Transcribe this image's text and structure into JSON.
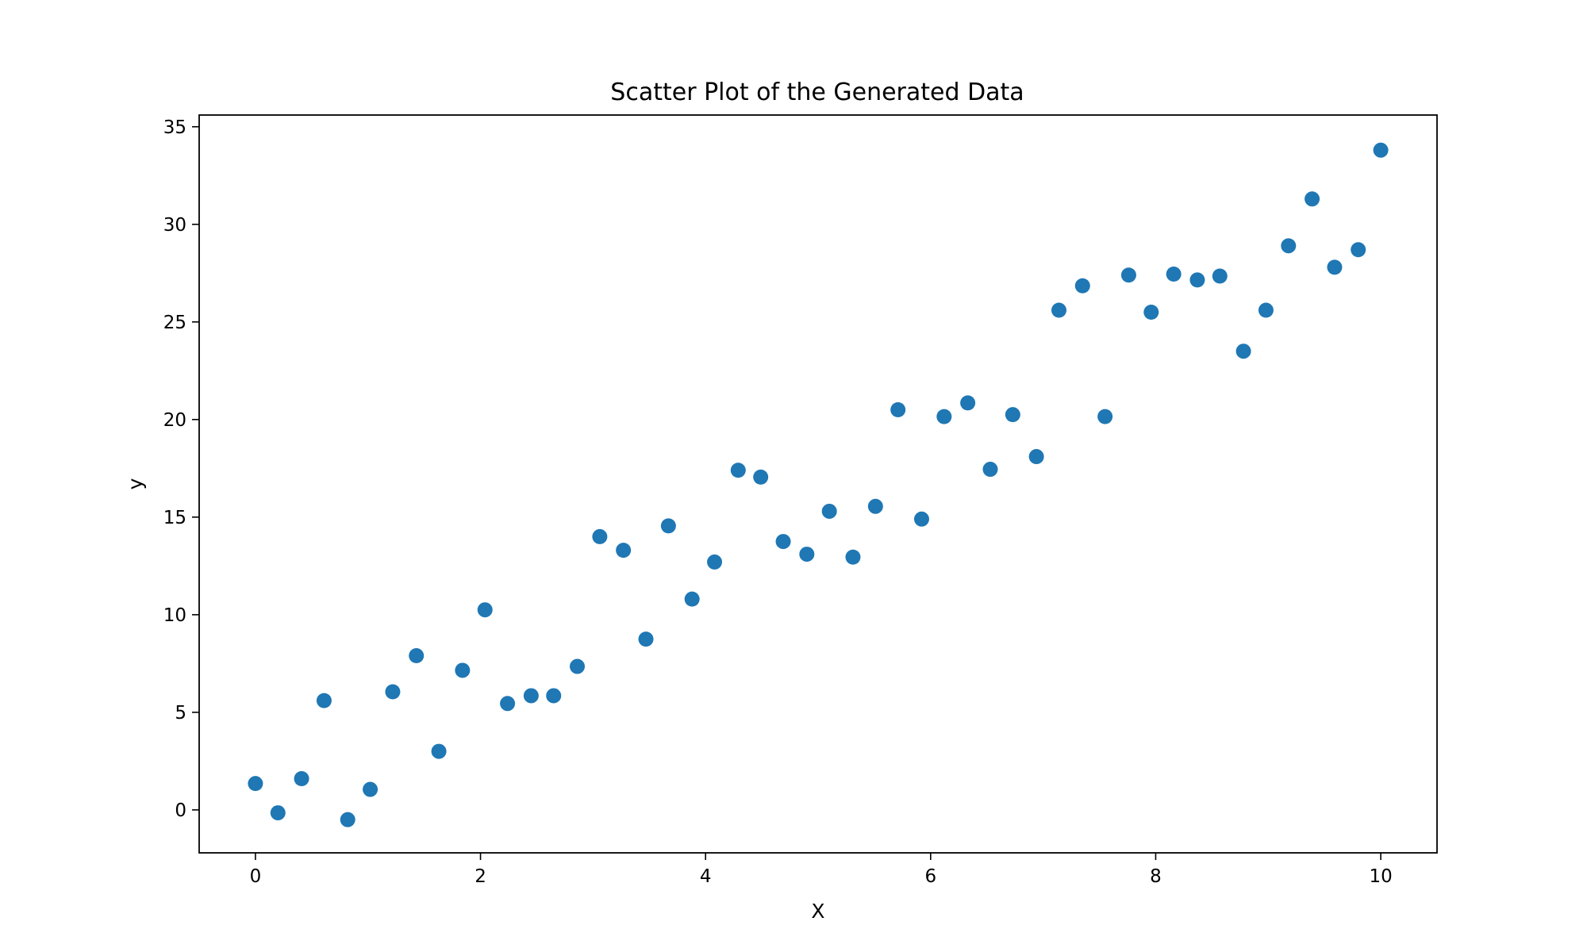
{
  "chart_data": {
    "type": "scatter",
    "title": "Scatter Plot of the Generated Data",
    "xlabel": "X",
    "ylabel": "y",
    "xlim": [
      -0.5,
      10.5
    ],
    "ylim": [
      -2.2,
      35.6
    ],
    "xticks": [
      0,
      2,
      4,
      6,
      8,
      10
    ],
    "yticks": [
      0,
      5,
      10,
      15,
      20,
      25,
      30,
      35
    ],
    "grid": false,
    "legend": "none",
    "marker_color": "#1f77b4",
    "points": [
      {
        "x": 0.0,
        "y": 1.35
      },
      {
        "x": 0.2,
        "y": -0.15
      },
      {
        "x": 0.41,
        "y": 1.6
      },
      {
        "x": 0.61,
        "y": 5.6
      },
      {
        "x": 0.82,
        "y": -0.5
      },
      {
        "x": 1.02,
        "y": 1.05
      },
      {
        "x": 1.22,
        "y": 6.05
      },
      {
        "x": 1.43,
        "y": 7.9
      },
      {
        "x": 1.63,
        "y": 3.0
      },
      {
        "x": 1.84,
        "y": 7.15
      },
      {
        "x": 2.04,
        "y": 10.25
      },
      {
        "x": 2.24,
        "y": 5.45
      },
      {
        "x": 2.45,
        "y": 5.85
      },
      {
        "x": 2.65,
        "y": 5.85
      },
      {
        "x": 2.86,
        "y": 7.35
      },
      {
        "x": 3.06,
        "y": 14.0
      },
      {
        "x": 3.27,
        "y": 13.3
      },
      {
        "x": 3.47,
        "y": 8.75
      },
      {
        "x": 3.67,
        "y": 14.55
      },
      {
        "x": 3.88,
        "y": 10.8
      },
      {
        "x": 4.08,
        "y": 12.7
      },
      {
        "x": 4.29,
        "y": 17.4
      },
      {
        "x": 4.49,
        "y": 17.05
      },
      {
        "x": 4.69,
        "y": 13.75
      },
      {
        "x": 4.9,
        "y": 13.1
      },
      {
        "x": 5.1,
        "y": 15.3
      },
      {
        "x": 5.31,
        "y": 12.95
      },
      {
        "x": 5.51,
        "y": 15.55
      },
      {
        "x": 5.71,
        "y": 20.5
      },
      {
        "x": 5.92,
        "y": 14.9
      },
      {
        "x": 6.12,
        "y": 20.15
      },
      {
        "x": 6.33,
        "y": 20.85
      },
      {
        "x": 6.53,
        "y": 17.45
      },
      {
        "x": 6.73,
        "y": 20.25
      },
      {
        "x": 6.94,
        "y": 18.1
      },
      {
        "x": 7.14,
        "y": 25.6
      },
      {
        "x": 7.35,
        "y": 26.85
      },
      {
        "x": 7.55,
        "y": 20.15
      },
      {
        "x": 7.76,
        "y": 27.4
      },
      {
        "x": 7.96,
        "y": 25.5
      },
      {
        "x": 8.16,
        "y": 27.45
      },
      {
        "x": 8.37,
        "y": 27.15
      },
      {
        "x": 8.57,
        "y": 27.35
      },
      {
        "x": 8.78,
        "y": 23.5
      },
      {
        "x": 8.98,
        "y": 25.6
      },
      {
        "x": 9.18,
        "y": 28.9
      },
      {
        "x": 9.39,
        "y": 31.3
      },
      {
        "x": 9.59,
        "y": 27.8
      },
      {
        "x": 9.8,
        "y": 28.7
      },
      {
        "x": 10.0,
        "y": 33.8
      }
    ]
  }
}
